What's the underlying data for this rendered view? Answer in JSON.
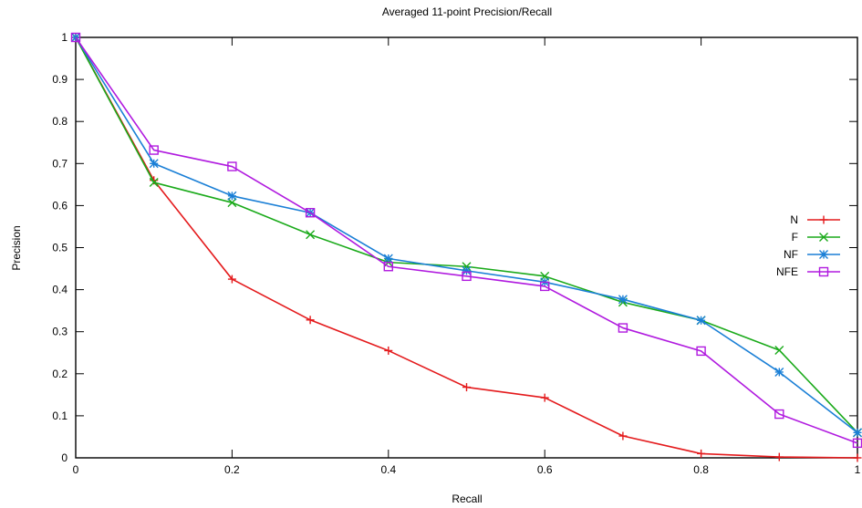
{
  "chart_data": {
    "type": "line",
    "title": "Averaged 11-point Precision/Recall",
    "xlabel": "Recall",
    "ylabel": "Precision",
    "xlim": [
      0,
      1
    ],
    "ylim": [
      0,
      1
    ],
    "x": [
      0,
      0.1,
      0.2,
      0.3,
      0.4,
      0.5,
      0.6,
      0.7,
      0.8,
      0.9,
      1
    ],
    "xticks": [
      "0",
      "0.2",
      "0.4",
      "0.6",
      "0.8",
      "1"
    ],
    "yticks": [
      "0",
      "0.1",
      "0.2",
      "0.3",
      "0.4",
      "0.5",
      "0.6",
      "0.7",
      "0.8",
      "0.9",
      "1"
    ],
    "grid": false,
    "legend_position": "right",
    "series": [
      {
        "name": "N",
        "color": "#e41a1c",
        "marker": "plus",
        "values": [
          1.0,
          0.66,
          0.425,
          0.328,
          0.255,
          0.168,
          0.143,
          0.052,
          0.01,
          0.002,
          0.0
        ]
      },
      {
        "name": "F",
        "color": "#1aaa1a",
        "marker": "x",
        "values": [
          1.0,
          0.655,
          0.607,
          0.531,
          0.465,
          0.455,
          0.432,
          0.37,
          0.327,
          0.256,
          0.06
        ]
      },
      {
        "name": "NF",
        "color": "#1a7fd6",
        "marker": "asterisk",
        "values": [
          1.0,
          0.7,
          0.623,
          0.583,
          0.474,
          0.445,
          0.418,
          0.377,
          0.327,
          0.204,
          0.06
        ]
      },
      {
        "name": "NFE",
        "color": "#b01adf",
        "marker": "square",
        "values": [
          1.0,
          0.732,
          0.693,
          0.583,
          0.455,
          0.432,
          0.408,
          0.309,
          0.254,
          0.104,
          0.035
        ]
      }
    ]
  }
}
